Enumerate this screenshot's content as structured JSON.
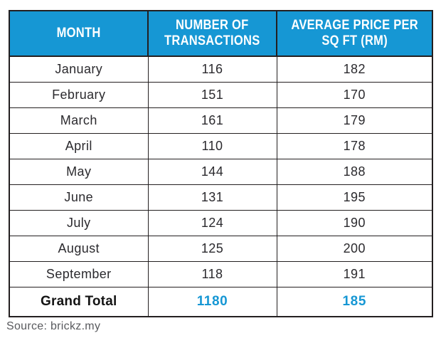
{
  "header": {
    "columns": [
      "MONTH",
      "NUMBER OF\nTRANSACTIONS",
      "AVERAGE PRICE PER\nSQ FT (RM)"
    ]
  },
  "chart_data": {
    "type": "table",
    "title": "",
    "categories": [
      "January",
      "February",
      "March",
      "April",
      "May",
      "June",
      "July",
      "August",
      "September"
    ],
    "series": [
      {
        "name": "NUMBER OF TRANSACTIONS",
        "values": [
          116,
          151,
          161,
          110,
          144,
          131,
          124,
          125,
          118
        ]
      },
      {
        "name": "AVERAGE PRICE PER SQ FT (RM)",
        "values": [
          182,
          170,
          179,
          178,
          188,
          195,
          190,
          200,
          191
        ]
      }
    ],
    "grand_total": {
      "label": "Grand Total",
      "transactions": 1180,
      "price": 185
    }
  },
  "source": "Source: brickz.my",
  "colors": {
    "header_bg": "#1697d4",
    "accent": "#1697d4",
    "border": "#231f20",
    "body_text": "#2b2a2e",
    "source_text": "#595a5e"
  }
}
